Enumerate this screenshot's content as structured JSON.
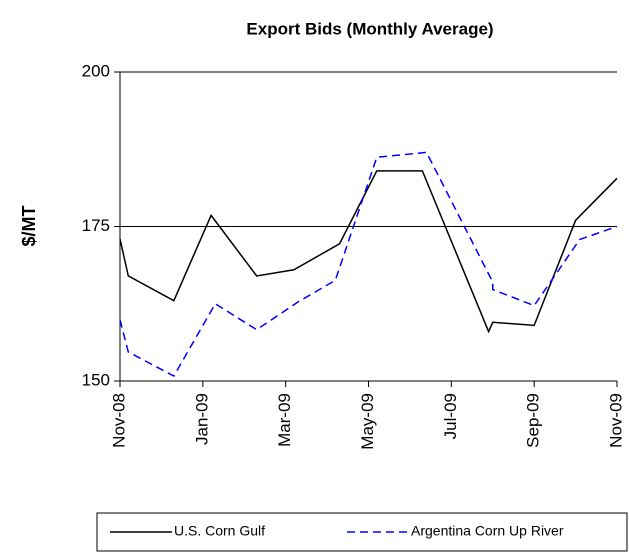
{
  "chart_data": {
    "type": "line",
    "title": "Export Bids (Monthly Average)",
    "y_label": "$/MT",
    "xlim": [
      0,
      12
    ],
    "xticks": [
      {
        "value": 0,
        "label": "Nov-08"
      },
      {
        "value": 2,
        "label": "Jan-09"
      },
      {
        "value": 4,
        "label": "Mar-09"
      },
      {
        "value": 6,
        "label": "May-09"
      },
      {
        "value": 8,
        "label": "Jul-09"
      },
      {
        "value": 10,
        "label": "Sep-09"
      },
      {
        "value": 12,
        "label": "Nov-09"
      }
    ],
    "ylim": [
      150,
      200
    ],
    "yticks": [
      150,
      175,
      200
    ],
    "grid": true,
    "legend": "bottom",
    "series": [
      {
        "name": "U.S. Corn Gulf",
        "color": "#000000",
        "dash": "solid",
        "x": [
          0,
          0.2,
          1.3,
          2.2,
          3.3,
          4.2,
          5.3,
          6.2,
          7.3,
          8.9,
          9.0,
          10.0,
          11.0,
          12.0
        ],
        "values": [
          173,
          167,
          163,
          176.8,
          167,
          168,
          172.2,
          184,
          184,
          158,
          159.5,
          159,
          176,
          182.8
        ]
      },
      {
        "name": "Argentina Corn Up River",
        "color": "#0000ff",
        "dash": "dashed",
        "x": [
          0,
          0.2,
          1.3,
          2.3,
          3.3,
          4.3,
          5.2,
          6.2,
          7.4,
          9.0,
          9.0,
          10.0,
          11.1,
          12.0
        ],
        "values": [
          159.9,
          154.7,
          150.8,
          162.5,
          158.3,
          162.8,
          166.3,
          186.2,
          187,
          166,
          164.8,
          162.2,
          172.9,
          175
        ]
      }
    ]
  }
}
